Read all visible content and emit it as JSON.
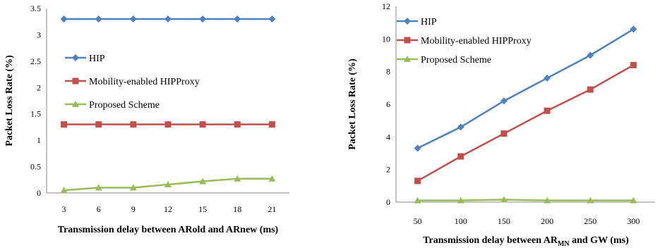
{
  "chart_data": [
    {
      "type": "line",
      "categories": [
        "3",
        "6",
        "9",
        "12",
        "15",
        "18",
        "21"
      ],
      "series": [
        {
          "name": "HIP",
          "values": [
            3.3,
            3.3,
            3.3,
            3.3,
            3.3,
            3.3,
            3.3
          ],
          "color": "#4F81BD",
          "marker": "diamond"
        },
        {
          "name": "Mobility-enabled HIPProxy",
          "values": [
            1.3,
            1.3,
            1.3,
            1.3,
            1.3,
            1.3,
            1.3
          ],
          "color": "#C0504D",
          "marker": "square"
        },
        {
          "name": "Proposed Scheme",
          "values": [
            0.05,
            0.1,
            0.1,
            0.16,
            0.22,
            0.27,
            0.27
          ],
          "color": "#9BBB59",
          "marker": "triangle"
        }
      ],
      "ylim": [
        0,
        3.5
      ],
      "yticks": [
        "0",
        "0.5",
        "1",
        "1.5",
        "2",
        "2.5",
        "3",
        "3.5"
      ],
      "ylabel": "Packet Loss Rate (%)",
      "xlabel": "Transmission delay between ARold and ARnew (ms)",
      "legend_position": "left-middle",
      "grid": false
    },
    {
      "type": "line",
      "categories": [
        "50",
        "100",
        "150",
        "200",
        "250",
        "300"
      ],
      "series": [
        {
          "name": "HIP",
          "values": [
            3.3,
            4.6,
            6.2,
            7.6,
            9.0,
            10.6
          ],
          "color": "#4F81BD",
          "marker": "diamond"
        },
        {
          "name": "Mobility-enabled HIPProxy",
          "values": [
            1.3,
            2.8,
            4.2,
            5.6,
            6.9,
            8.4
          ],
          "color": "#C0504D",
          "marker": "square"
        },
        {
          "name": "Proposed Scheme",
          "values": [
            0.1,
            0.1,
            0.15,
            0.1,
            0.1,
            0.1
          ],
          "color": "#9BBB59",
          "marker": "triangle"
        }
      ],
      "ylim": [
        0,
        12
      ],
      "yticks": [
        "0",
        "2",
        "4",
        "6",
        "8",
        "10",
        "12"
      ],
      "ylabel": "Packet Loss Rate (%)",
      "xlabel_main": "Transmission delay between AR",
      "xlabel_sub": "MN",
      "xlabel_tail": " and GW (ms)",
      "legend_position": "top-left",
      "grid": false
    }
  ]
}
